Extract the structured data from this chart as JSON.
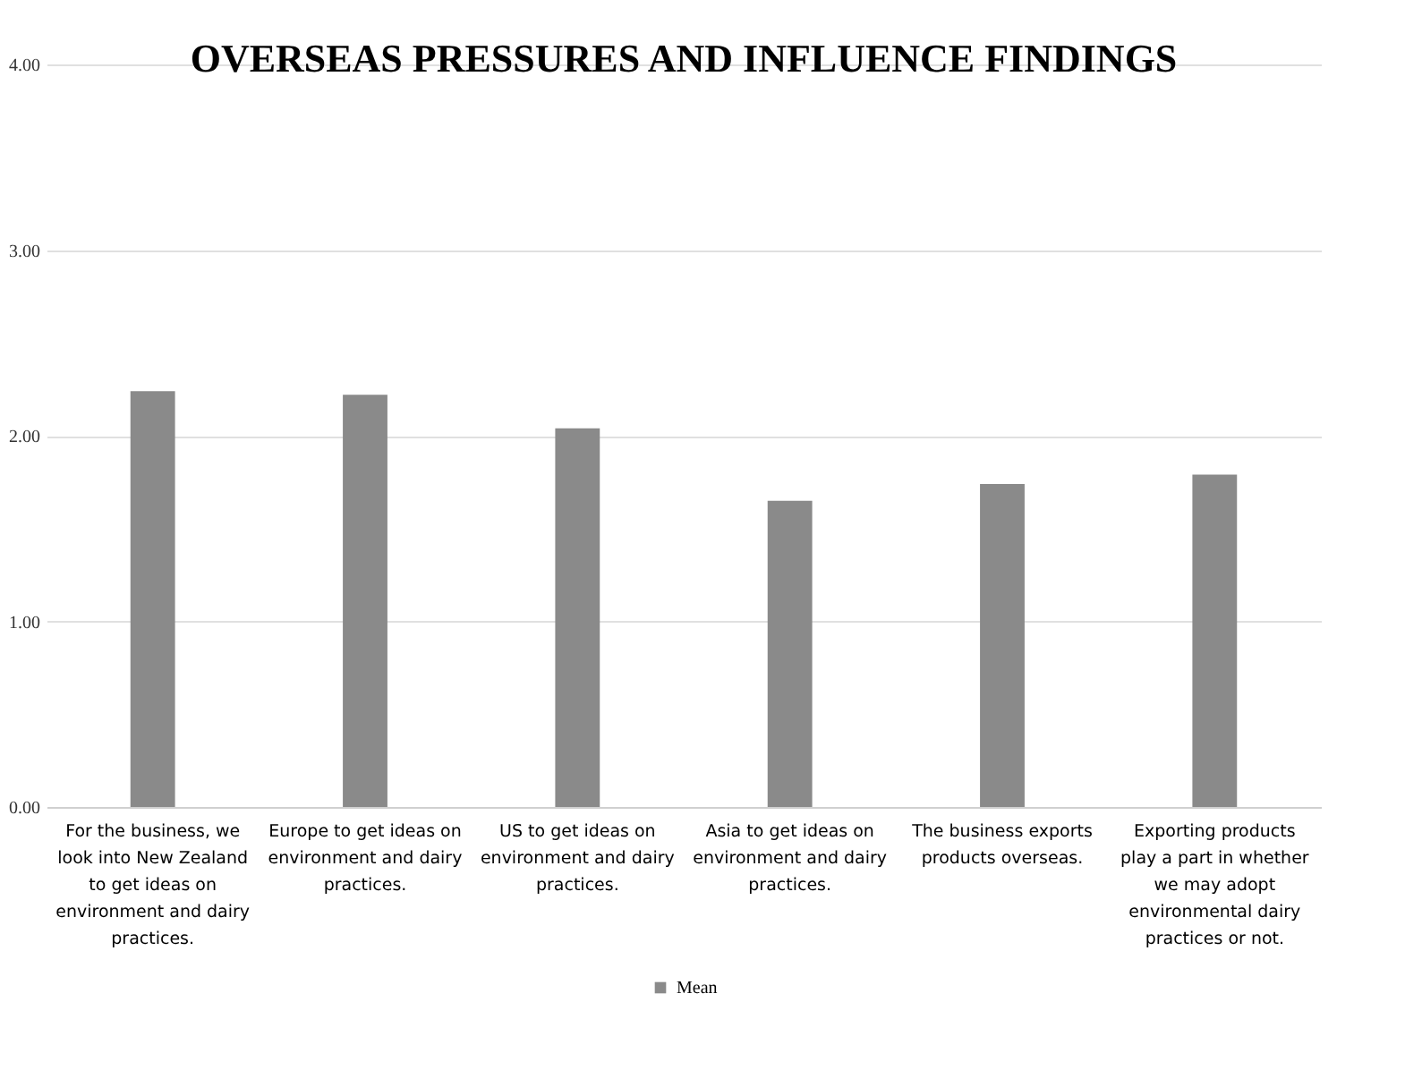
{
  "chart_data": {
    "type": "bar",
    "title": "OVERSEAS PRESSURES AND INFLUENCE FINDINGS",
    "categories": [
      "For the business, we look into New Zealand to get ideas on environment and dairy practices.",
      "Europe to get ideas on environment and dairy practices.",
      "US to get ideas on environment and dairy practices.",
      "Asia to get ideas on environment and dairy practices.",
      "The business exports products overseas.",
      "Exporting products play a part in whether we may adopt environmental dairy practices or not."
    ],
    "series": [
      {
        "name": "Mean",
        "color": "#8a8a8a",
        "values": [
          2.24,
          2.22,
          2.04,
          1.65,
          1.74,
          1.79
        ]
      }
    ],
    "ylim": [
      0,
      4
    ],
    "yticks": [
      {
        "value": 0,
        "label": "0.00"
      },
      {
        "value": 1,
        "label": "1.00"
      },
      {
        "value": 2,
        "label": "2.00"
      },
      {
        "value": 3,
        "label": "3.00"
      },
      {
        "value": 4,
        "label": "4.00"
      }
    ],
    "grid": "y",
    "legend": "bottom"
  }
}
